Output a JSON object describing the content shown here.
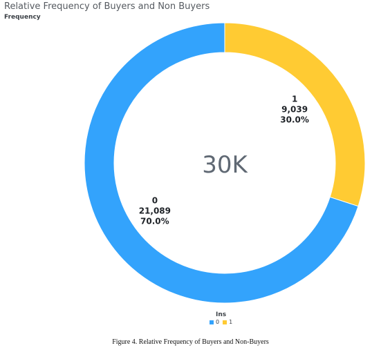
{
  "chart_data": {
    "type": "pie",
    "title": "Relative Frequency of Buyers and Non Buyers",
    "subtitle": "Frequency",
    "center_label": "30K",
    "legend_title": "Ins",
    "legend_position": "bottom",
    "slices": [
      {
        "name": "0",
        "value": 21089,
        "value_label": "21,089",
        "percent_label": "70.0%",
        "color": "#33a3fc"
      },
      {
        "name": "1",
        "value": 9039,
        "value_label": "9,039",
        "percent_label": "30.0%",
        "color": "#ffcb33"
      }
    ]
  },
  "caption": "Figure 4. Relative Frequency of Buyers and Non-Buyers"
}
